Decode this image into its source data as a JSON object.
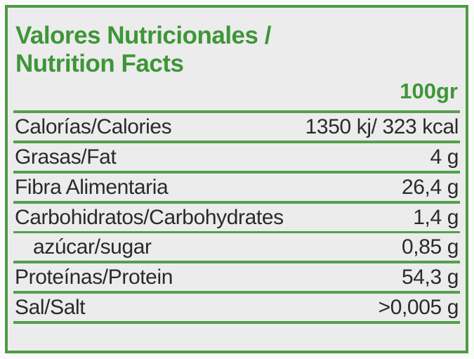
{
  "label": {
    "title_line1": "Valores Nutricionales /",
    "title_line2": "Nutrition Facts",
    "serving_size": "100gr",
    "rows": [
      {
        "name": "Calorías/Calories",
        "value": "1350 kj/ 323 kcal",
        "indent": false
      },
      {
        "name": "Grasas/Fat",
        "value": "4 g",
        "indent": false
      },
      {
        "name": "Fibra Alimentaria",
        "value": "26,4 g",
        "indent": false
      },
      {
        "name": "Carbohidratos/Carbohydrates",
        "value": "1,4 g",
        "indent": false
      },
      {
        "name": "azúcar/sugar",
        "value": "0,85 g",
        "indent": true
      },
      {
        "name": "Proteínas/Protein",
        "value": "54,3 g",
        "indent": false
      },
      {
        "name": "Sal/Salt",
        "value": ">0,005 g",
        "indent": false
      }
    ],
    "colors": {
      "title_green": "#3e9637",
      "line_green": "#54a04b",
      "border_green": "#4f9b45",
      "panel_background": "#ececed",
      "row_text": "#2a2a2a"
    }
  }
}
